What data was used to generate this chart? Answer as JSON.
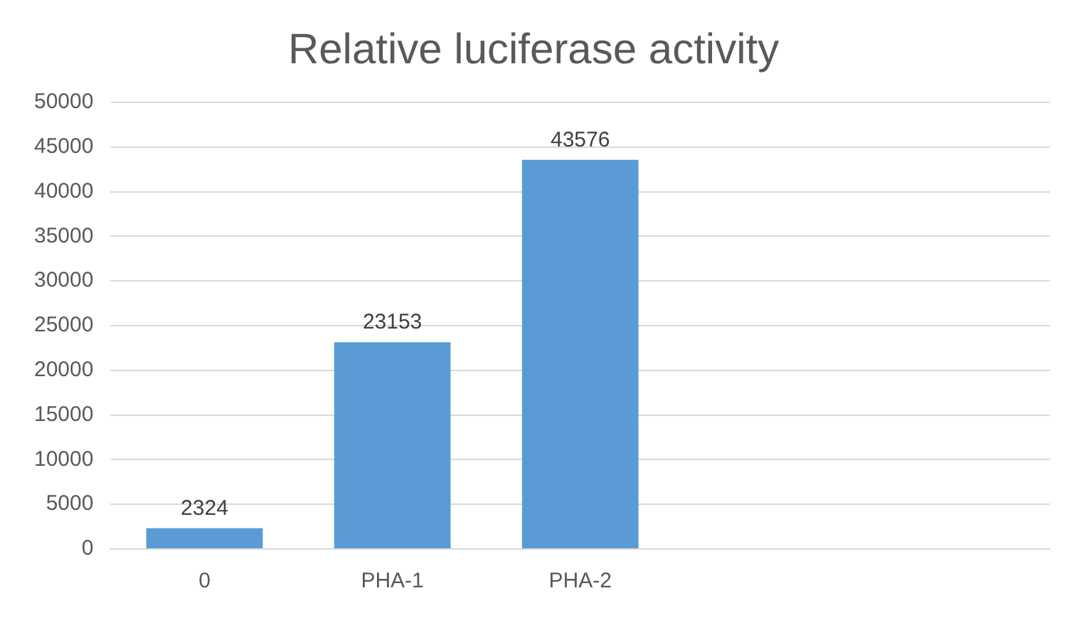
{
  "chart_data": {
    "type": "bar",
    "title": "Relative luciferase activity",
    "categories": [
      "0",
      "PHA-1",
      "PHA-2",
      null,
      null
    ],
    "values": [
      2324,
      23153,
      43576,
      null,
      null
    ],
    "color": "#5b9bd5",
    "ylim": [
      0,
      50000
    ],
    "yticks": [
      0,
      5000,
      10000,
      15000,
      20000,
      25000,
      30000,
      35000,
      40000,
      45000,
      50000
    ],
    "grid": "y",
    "data_labels": true,
    "legend": false
  }
}
